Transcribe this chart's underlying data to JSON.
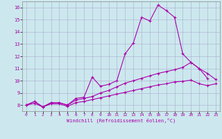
{
  "xlabel": "Windchill (Refroidissement éolien,°C)",
  "bg_color": "#cce8ee",
  "line_color": "#aa00aa",
  "xlim": [
    -0.5,
    23.5
  ],
  "ylim": [
    7.5,
    16.5
  ],
  "xticks": [
    0,
    1,
    2,
    3,
    4,
    5,
    6,
    7,
    8,
    9,
    10,
    11,
    12,
    13,
    14,
    15,
    16,
    17,
    18,
    19,
    20,
    21,
    22,
    23
  ],
  "yticks": [
    8,
    9,
    10,
    11,
    12,
    13,
    14,
    15,
    16
  ],
  "line1_x": [
    0,
    1,
    2,
    3,
    4,
    5,
    6,
    7,
    8,
    9,
    10,
    11,
    12,
    13,
    14,
    15,
    16,
    17,
    18,
    19,
    20,
    21,
    22
  ],
  "line1_y": [
    8.0,
    8.3,
    7.85,
    8.2,
    8.2,
    8.0,
    8.55,
    8.65,
    10.3,
    9.55,
    9.7,
    10.0,
    12.2,
    13.1,
    15.2,
    14.9,
    16.2,
    15.75,
    15.2,
    12.2,
    11.5,
    11.0,
    10.2
  ],
  "line2_x": [
    0,
    1,
    2,
    3,
    4,
    5,
    6,
    7,
    8,
    9,
    10,
    11,
    12,
    13,
    14,
    15,
    16,
    17,
    18,
    19,
    20,
    21,
    22,
    23
  ],
  "line2_y": [
    8.0,
    8.3,
    7.85,
    8.2,
    8.2,
    8.0,
    8.4,
    8.55,
    8.7,
    9.0,
    9.2,
    9.5,
    9.8,
    10.0,
    10.2,
    10.4,
    10.6,
    10.75,
    10.9,
    11.1,
    11.5,
    11.0,
    10.6,
    10.1
  ],
  "line3_x": [
    0,
    1,
    2,
    3,
    4,
    5,
    6,
    7,
    8,
    9,
    10,
    11,
    12,
    13,
    14,
    15,
    16,
    17,
    18,
    19,
    20,
    21,
    22,
    23
  ],
  "line3_y": [
    8.0,
    8.15,
    7.85,
    8.1,
    8.1,
    7.9,
    8.2,
    8.3,
    8.45,
    8.6,
    8.75,
    8.9,
    9.05,
    9.2,
    9.35,
    9.5,
    9.65,
    9.75,
    9.9,
    9.95,
    10.05,
    9.75,
    9.6,
    9.75
  ]
}
